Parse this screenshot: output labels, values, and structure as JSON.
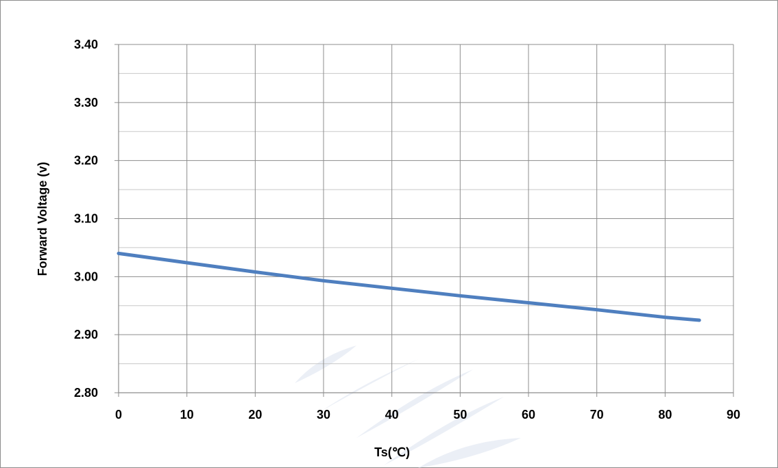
{
  "chart_data": {
    "type": "line",
    "title": "",
    "xlabel": "Ts(℃)",
    "ylabel": "Forward Voltage (v)",
    "xlim": [
      0,
      90
    ],
    "ylim": [
      2.8,
      3.4
    ],
    "x_ticks": [
      "0",
      "10",
      "20",
      "30",
      "40",
      "50",
      "60",
      "70",
      "80",
      "90"
    ],
    "y_ticks": [
      "2.80",
      "2.90",
      "3.00",
      "3.10",
      "3.20",
      "3.30",
      "3.40"
    ],
    "grid": {
      "major_x": true,
      "major_y": true,
      "minor_y": true
    },
    "legend": "none",
    "series": [
      {
        "color": "#4f7fbf",
        "x": [
          0,
          10,
          20,
          30,
          40,
          50,
          60,
          70,
          80,
          85
        ],
        "y": [
          3.04,
          3.024,
          3.008,
          2.993,
          2.98,
          2.967,
          2.955,
          2.943,
          2.93,
          2.925
        ]
      }
    ]
  },
  "colors": {
    "grid": "#8c8c8c",
    "minor_grid": "#c8c8c8",
    "axis": "#8c8c8c",
    "watermark": "#e2e8f2"
  }
}
